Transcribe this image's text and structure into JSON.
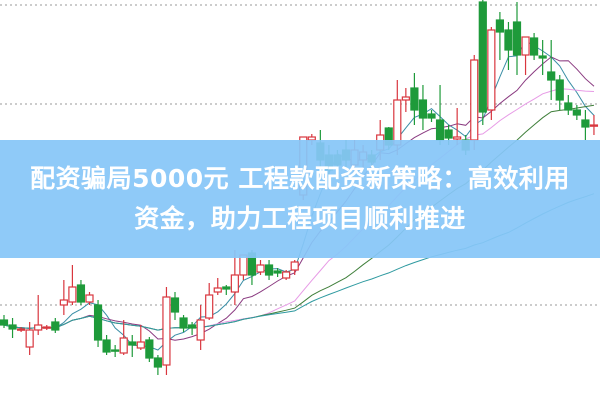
{
  "headline": {
    "line1": "配资骗局5000元 工程款配资新策略：高效利用",
    "line2": "资金，助力工程项目顺利推进"
  },
  "colors": {
    "up": "#d9363e",
    "down": "#1e9a3a",
    "banner": "#87c6f7",
    "grid": "#9a9a9a",
    "ma5": "#3a8ea6",
    "ma10": "#8a3a80",
    "ma20": "#e79be6",
    "ma30": "#3f7f3a",
    "ma60": "#2f9aa0"
  },
  "chart_data": {
    "type": "candlestick",
    "title": "",
    "xlabel": "",
    "ylabel": "",
    "grid": "horizontal dotted",
    "moving_averages": [
      5,
      10,
      20,
      30,
      60
    ],
    "ohlc": [
      [
        8.0,
        7.5,
        8.5,
        7.2
      ],
      [
        7.5,
        7.1,
        8.2,
        6.2
      ],
      [
        7.0,
        7.1,
        7.3,
        6.8
      ],
      [
        5.3,
        7.0,
        7.8,
        4.5
      ],
      [
        7.0,
        7.5,
        10.5,
        6.5
      ],
      [
        7.2,
        7.3,
        7.5,
        7.0
      ],
      [
        7.8,
        7.0,
        8.2,
        6.7
      ],
      [
        9.5,
        10.0,
        12.0,
        8.5
      ],
      [
        9.8,
        11.3,
        13.5,
        9.5
      ],
      [
        11.5,
        9.8,
        12.0,
        9.5
      ],
      [
        9.8,
        10.5,
        10.8,
        9.5
      ],
      [
        9.5,
        6.0,
        10.0,
        5.3
      ],
      [
        6.0,
        4.8,
        6.5,
        4.5
      ],
      [
        5.0,
        4.9,
        5.5,
        4.3
      ],
      [
        4.7,
        6.2,
        8.0,
        4.5
      ],
      [
        5.8,
        5.5,
        6.5,
        4.3
      ],
      [
        5.2,
        5.8,
        7.5,
        5.0
      ],
      [
        6.0,
        4.2,
        6.3,
        3.8
      ],
      [
        4.2,
        3.3,
        4.5,
        2.5
      ],
      [
        3.5,
        10.3,
        11.3,
        2.5
      ],
      [
        10.2,
        8.8,
        10.8,
        8.0
      ],
      [
        8.2,
        7.2,
        8.5,
        6.8
      ],
      [
        7.5,
        7.2,
        7.8,
        6.5
      ],
      [
        6.0,
        8.0,
        9.5,
        5.0
      ],
      [
        8.2,
        10.5,
        11.7,
        8.0
      ],
      [
        10.8,
        11.2,
        12.2,
        10.5
      ],
      [
        11.3,
        11.1,
        11.5,
        10.5
      ],
      [
        10.8,
        12.5,
        15.0,
        9.5
      ],
      [
        12.5,
        14.5,
        14.5,
        12.0
      ],
      [
        14.7,
        12.5,
        15.0,
        11.5
      ],
      [
        12.8,
        13.5,
        14.0,
        12.5
      ],
      [
        13.5,
        12.5,
        14.0,
        12.0
      ],
      [
        12.9,
        12.7,
        13.2,
        12.3
      ],
      [
        12.2,
        12.8,
        13.0,
        12.0
      ],
      [
        13.0,
        13.8,
        14.0,
        12.5
      ],
      [
        20.5,
        26.3,
        26.3,
        20.0
      ],
      [
        26.0,
        26.3,
        26.6,
        25.5
      ],
      [
        25.7,
        24.0,
        27.0,
        23.0
      ],
      [
        24.5,
        23.0,
        25.5,
        22.0
      ],
      [
        24.5,
        23.5,
        25.0,
        22.5
      ],
      [
        25.0,
        24.0,
        26.0,
        23.0
      ],
      [
        23.5,
        25.0,
        26.0,
        22.5
      ],
      [
        24.0,
        24.8,
        25.5,
        23.0
      ],
      [
        24.5,
        23.8,
        25.0,
        23.0
      ],
      [
        25.0,
        26.5,
        28.0,
        24.0
      ],
      [
        27.2,
        25.5,
        27.3,
        25.0
      ],
      [
        25.5,
        30.0,
        32.0,
        24.5
      ],
      [
        30.0,
        30.3,
        31.2,
        28.8
      ],
      [
        31.2,
        29.0,
        32.7,
        27.5
      ],
      [
        30.0,
        28.2,
        31.5,
        27.0
      ],
      [
        28.6,
        28.2,
        29.0,
        27.8
      ],
      [
        28.0,
        26.0,
        31.5,
        25.5
      ],
      [
        27.0,
        26.2,
        27.5,
        25.5
      ],
      [
        26.1,
        26.3,
        29.2,
        25.5
      ],
      [
        26.0,
        25.0,
        26.5,
        24.5
      ],
      [
        26.0,
        34.0,
        34.5,
        25.0
      ],
      [
        39.8,
        28.8,
        40.0,
        27.5
      ],
      [
        29.0,
        37.0,
        37.3,
        28.0
      ],
      [
        38.0,
        36.8,
        38.8,
        34.0
      ],
      [
        37.0,
        35.0,
        37.8,
        33.0
      ],
      [
        37.8,
        34.5,
        39.8,
        32.5
      ],
      [
        34.5,
        36.3,
        36.3,
        32.5
      ],
      [
        36.2,
        34.5,
        36.7,
        34.0
      ],
      [
        34.4,
        34.2,
        36.0,
        32.5
      ],
      [
        32.8,
        32.0,
        36.0,
        30.0
      ],
      [
        32.0,
        30.0,
        32.5,
        29.0
      ],
      [
        29.7,
        29.0,
        30.5,
        28.5
      ],
      [
        29.0,
        28.5,
        29.5,
        28.0
      ],
      [
        28.0,
        27.3,
        29.0,
        26.0
      ],
      [
        27.5,
        27.5,
        28.5,
        26.5
      ]
    ]
  }
}
